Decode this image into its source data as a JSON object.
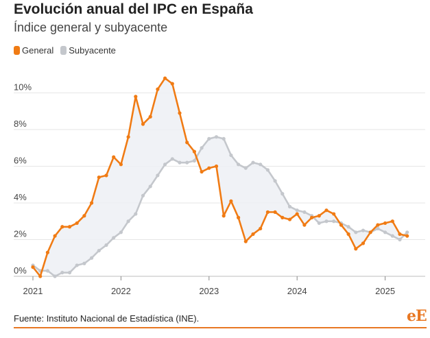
{
  "header": {
    "title": "Evolución anual del IPC en España",
    "subtitle": "Índice general y subyacente"
  },
  "legend": [
    {
      "label": "General",
      "color": "#f07b14"
    },
    {
      "label": "Subyacente",
      "color": "#c4c7cc"
    }
  ],
  "footer": {
    "source": "Fuente: Instituto Nacional de Estadística (INE).",
    "logo": "eE"
  },
  "chart_data": {
    "type": "line",
    "title": "Evolución anual del IPC en España",
    "subtitle": "Índice general y subyacente",
    "xlabel": "",
    "ylabel": "",
    "x_ticks": [
      "2021",
      "2022",
      "2023",
      "2024",
      "2025"
    ],
    "y_ticks": [
      "0%",
      "2%",
      "4%",
      "6%",
      "8%",
      "10%"
    ],
    "ylim": [
      -0.5,
      11
    ],
    "grid": true,
    "legend_position": "top-left",
    "x_start": "2021-01",
    "series": [
      {
        "name": "General",
        "color": "#f07b14",
        "values": [
          0.5,
          0.0,
          1.3,
          2.2,
          2.7,
          2.7,
          2.9,
          3.3,
          4.0,
          5.4,
          5.5,
          6.5,
          6.1,
          7.6,
          9.8,
          8.3,
          8.7,
          10.2,
          10.8,
          10.5,
          8.9,
          7.3,
          6.8,
          5.7,
          5.9,
          6.0,
          3.3,
          4.1,
          3.2,
          1.9,
          2.3,
          2.6,
          3.5,
          3.5,
          3.2,
          3.1,
          3.4,
          2.8,
          3.2,
          3.3,
          3.6,
          3.4,
          2.8,
          2.3,
          1.5,
          1.8,
          2.4,
          2.8,
          2.9,
          3.0,
          2.3,
          2.2
        ]
      },
      {
        "name": "Subyacente",
        "color": "#c4c7cc",
        "values": [
          0.6,
          0.3,
          0.3,
          0.0,
          0.2,
          0.2,
          0.6,
          0.7,
          1.0,
          1.4,
          1.7,
          2.1,
          2.4,
          3.0,
          3.4,
          4.4,
          4.9,
          5.5,
          6.1,
          6.4,
          6.2,
          6.2,
          6.3,
          7.0,
          7.5,
          7.6,
          7.5,
          6.6,
          6.1,
          5.9,
          6.2,
          6.1,
          5.8,
          5.2,
          4.5,
          3.8,
          3.6,
          3.5,
          3.3,
          2.9,
          3.0,
          3.0,
          2.9,
          2.7,
          2.4,
          2.5,
          2.4,
          2.6,
          2.4,
          2.2,
          2.0,
          2.4
        ]
      }
    ]
  }
}
